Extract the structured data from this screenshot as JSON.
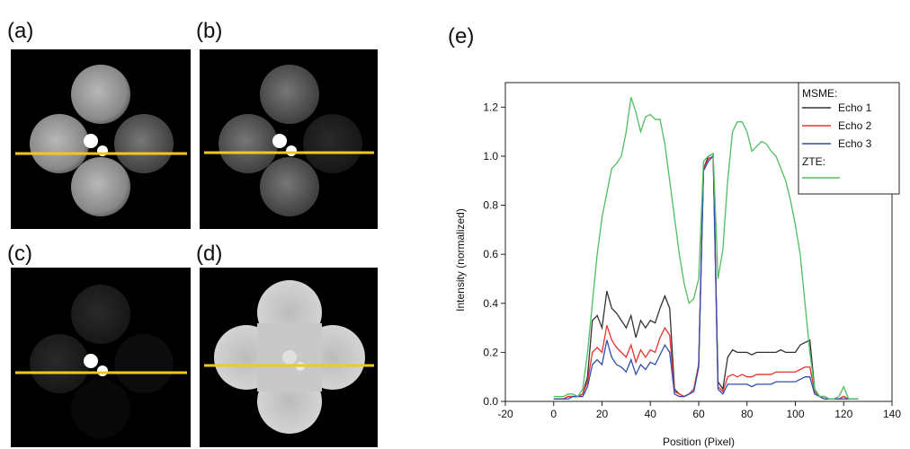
{
  "panels": [
    "(a)",
    "(b)",
    "(c)",
    "(d)"
  ],
  "chart_data": {
    "type": "line",
    "panel_label": "(e)",
    "x_label": "Position (Pixel)",
    "y_label": "Intensity (normalized)",
    "xlim": [
      -20,
      140
    ],
    "ylim": [
      0,
      1.3
    ],
    "xticks": [
      -20,
      0,
      20,
      40,
      60,
      80,
      100,
      120,
      140
    ],
    "yticks": [
      {
        "value": 0,
        "label": "0.0"
      },
      0.2,
      0.4,
      0.6,
      0.8,
      {
        "value": 1,
        "label": "1.0"
      },
      1.2
    ],
    "legend_heading": "MSME:",
    "legend": "upper right",
    "x": [
      0,
      2,
      4,
      6,
      8,
      10,
      12,
      14,
      16,
      18,
      20,
      22,
      24,
      26,
      28,
      30,
      32,
      34,
      36,
      38,
      40,
      42,
      44,
      46,
      48,
      50,
      52,
      54,
      56,
      58,
      60,
      62,
      64,
      66,
      68,
      70,
      72,
      74,
      76,
      78,
      80,
      82,
      84,
      86,
      88,
      90,
      92,
      94,
      96,
      98,
      100,
      102,
      104,
      106,
      108,
      110,
      112,
      114,
      116,
      118,
      120,
      122,
      124,
      126
    ],
    "series": [
      {
        "name": "Echo 1",
        "color": "#333333",
        "values": [
          0.01,
          0.01,
          0.01,
          0.02,
          0.02,
          0.02,
          0.03,
          0.1,
          0.33,
          0.35,
          0.3,
          0.45,
          0.38,
          0.36,
          0.33,
          0.3,
          0.35,
          0.26,
          0.33,
          0.3,
          0.33,
          0.32,
          0.38,
          0.43,
          0.38,
          0.05,
          0.03,
          0.02,
          0.03,
          0.05,
          0.15,
          0.95,
          1.0,
          1.01,
          0.08,
          0.05,
          0.18,
          0.21,
          0.2,
          0.2,
          0.2,
          0.19,
          0.2,
          0.2,
          0.2,
          0.2,
          0.2,
          0.21,
          0.2,
          0.2,
          0.2,
          0.23,
          0.24,
          0.25,
          0.05,
          0.02,
          0.02,
          0.01,
          0.01,
          0.01,
          0.02,
          0.01,
          0.01,
          0.01
        ]
      },
      {
        "name": "Echo 2",
        "color": "#e8322a",
        "values": [
          0.01,
          0.01,
          0.01,
          0.02,
          0.02,
          0.02,
          0.03,
          0.08,
          0.2,
          0.22,
          0.2,
          0.31,
          0.25,
          0.22,
          0.2,
          0.18,
          0.23,
          0.16,
          0.21,
          0.18,
          0.21,
          0.2,
          0.26,
          0.3,
          0.27,
          0.04,
          0.03,
          0.02,
          0.03,
          0.05,
          0.15,
          0.95,
          0.99,
          1.0,
          0.06,
          0.04,
          0.1,
          0.11,
          0.1,
          0.11,
          0.1,
          0.1,
          0.11,
          0.11,
          0.11,
          0.11,
          0.12,
          0.12,
          0.12,
          0.12,
          0.12,
          0.13,
          0.14,
          0.14,
          0.04,
          0.02,
          0.01,
          0.01,
          0.01,
          0.01,
          0.02,
          0.01,
          0.01,
          0.01
        ]
      },
      {
        "name": "Echo 3",
        "color": "#2f4fb0",
        "values": [
          0.01,
          0.01,
          0.01,
          0.01,
          0.02,
          0.02,
          0.02,
          0.06,
          0.15,
          0.17,
          0.15,
          0.25,
          0.18,
          0.15,
          0.14,
          0.12,
          0.17,
          0.11,
          0.15,
          0.13,
          0.16,
          0.15,
          0.19,
          0.23,
          0.2,
          0.03,
          0.02,
          0.02,
          0.03,
          0.04,
          0.14,
          0.94,
          0.98,
          1.0,
          0.05,
          0.03,
          0.07,
          0.07,
          0.07,
          0.07,
          0.07,
          0.06,
          0.07,
          0.07,
          0.07,
          0.07,
          0.08,
          0.08,
          0.08,
          0.08,
          0.08,
          0.09,
          0.1,
          0.1,
          0.03,
          0.02,
          0.01,
          0.01,
          0.01,
          0.01,
          0.01,
          0.01,
          0.01,
          0.01
        ]
      },
      {
        "name": "ZTE:",
        "color": "#4fbf5f",
        "values": [
          0.02,
          0.02,
          0.02,
          0.03,
          0.03,
          0.02,
          0.05,
          0.2,
          0.4,
          0.6,
          0.75,
          0.85,
          0.95,
          0.97,
          1.0,
          1.1,
          1.24,
          1.18,
          1.1,
          1.16,
          1.17,
          1.15,
          1.15,
          1.05,
          0.9,
          0.75,
          0.6,
          0.48,
          0.4,
          0.42,
          0.5,
          0.98,
          1.0,
          1.01,
          0.5,
          0.62,
          0.9,
          1.1,
          1.14,
          1.14,
          1.1,
          1.02,
          1.04,
          1.06,
          1.05,
          1.02,
          1.0,
          0.95,
          0.9,
          0.82,
          0.72,
          0.6,
          0.4,
          0.2,
          0.05,
          0.02,
          0.02,
          0.01,
          0.01,
          0.02,
          0.06,
          0.01,
          0.01,
          0.01
        ]
      }
    ]
  }
}
